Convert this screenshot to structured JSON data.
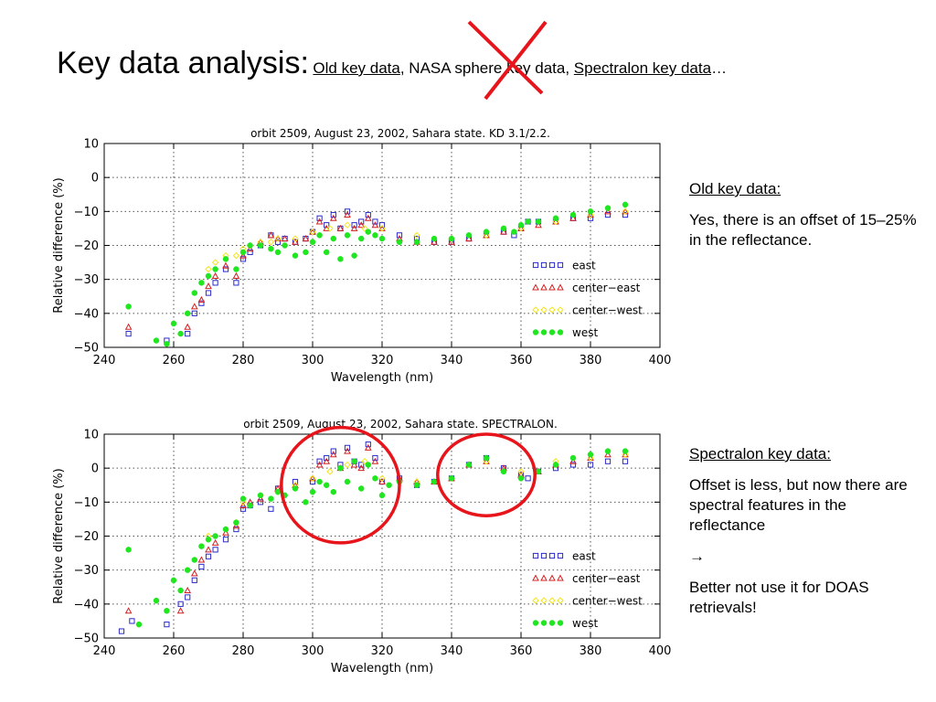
{
  "slide": {
    "title_main": "Key data analysis:",
    "title_opt_old": "Old key data",
    "title_sep1": ", ",
    "title_opt_nasa": "NASA sphere key data",
    "title_sep2": ", ",
    "title_opt_spectralon": "Spectralon key data",
    "title_ellipsis": "…",
    "cross_color": "#e8141b"
  },
  "notes": {
    "top": {
      "heading": "Old key data:",
      "body": "Yes, there is an offset of 15–25% in the reflectance."
    },
    "bottom": {
      "heading": "Spectralon key data:",
      "body": "Offset is less, but now there are spectral features in the reflectance",
      "arrow": "→",
      "conclusion": "Better not use it for DOAS retrievals!"
    }
  },
  "chart_data": [
    {
      "type": "scatter",
      "title": "orbit 2509, August 23, 2002, Sahara state. KD 3.1/2.2.",
      "xlabel": "Wavelength (nm)",
      "ylabel": "Relative difference (%)",
      "xlim": [
        240,
        400
      ],
      "ylim": [
        -50,
        10
      ],
      "xticks": [
        240,
        260,
        280,
        300,
        320,
        340,
        360,
        380,
        400
      ],
      "yticks": [
        10,
        0,
        -10,
        -20,
        -30,
        -40,
        -50
      ],
      "grid": true,
      "legend_position": "bottom-right",
      "series": [
        {
          "name": "east",
          "marker": "square",
          "color": "#2b2bc8",
          "x": [
            247,
            258,
            264,
            266,
            268,
            270,
            272,
            275,
            278,
            280,
            282,
            285,
            288,
            290,
            292,
            295,
            298,
            300,
            302,
            304,
            306,
            308,
            310,
            312,
            314,
            316,
            318,
            320,
            325,
            330,
            335,
            340,
            345,
            350,
            355,
            358,
            360,
            362,
            365,
            370,
            375,
            380,
            385,
            390
          ],
          "y": [
            -46,
            -48,
            -46,
            -40,
            -37,
            -34,
            -31,
            -27,
            -31,
            -24,
            -22,
            -20,
            -17,
            -19,
            -18,
            -19,
            -18,
            -16,
            -12,
            -14,
            -11,
            -15,
            -10,
            -14,
            -13,
            -11,
            -13,
            -14,
            -17,
            -18,
            -19,
            -19,
            -18,
            -17,
            -16,
            -17,
            -15,
            -13,
            -13,
            -13,
            -12,
            -12,
            -11,
            -11
          ]
        },
        {
          "name": "center−east",
          "marker": "triangle",
          "color": "#d42020",
          "x": [
            247,
            264,
            266,
            268,
            270,
            272,
            275,
            278,
            280,
            282,
            285,
            288,
            290,
            292,
            295,
            298,
            300,
            302,
            304,
            306,
            308,
            310,
            312,
            314,
            316,
            318,
            320,
            325,
            330,
            335,
            340,
            345,
            350,
            355,
            360,
            365,
            370,
            375,
            380,
            385,
            390
          ],
          "y": [
            -44,
            -44,
            -38,
            -36,
            -32,
            -29,
            -26,
            -29,
            -23,
            -21,
            -19,
            -17,
            -18,
            -18,
            -19,
            -18,
            -16,
            -13,
            -15,
            -12,
            -15,
            -11,
            -15,
            -14,
            -12,
            -14,
            -15,
            -18,
            -19,
            -19,
            -19,
            -18,
            -17,
            -16,
            -15,
            -14,
            -13,
            -12,
            -11,
            -10,
            -10
          ]
        },
        {
          "name": "center−west",
          "marker": "diamond",
          "color": "#f2e61a",
          "x": [
            270,
            272,
            275,
            278,
            280,
            282,
            285,
            288,
            290,
            295,
            300,
            305,
            310,
            315,
            320,
            330,
            340,
            350,
            360,
            370,
            380,
            390
          ],
          "y": [
            -27,
            -25,
            -23,
            -23,
            -21,
            -20,
            -19,
            -19,
            -18,
            -18,
            -16,
            -15,
            -14,
            -15,
            -15,
            -17,
            -18,
            -17,
            -15,
            -13,
            -11,
            -10
          ]
        },
        {
          "name": "west",
          "marker": "circle",
          "color": "#1fe61f",
          "x": [
            247,
            255,
            258,
            260,
            262,
            264,
            266,
            268,
            270,
            272,
            275,
            278,
            280,
            282,
            285,
            288,
            290,
            292,
            295,
            298,
            300,
            302,
            304,
            306,
            308,
            310,
            312,
            314,
            316,
            318,
            320,
            325,
            330,
            335,
            340,
            345,
            350,
            355,
            358,
            360,
            362,
            365,
            370,
            375,
            380,
            385,
            390
          ],
          "y": [
            -38,
            -48,
            -49,
            -43,
            -46,
            -40,
            -34,
            -31,
            -29,
            -27,
            -24,
            -27,
            -22,
            -20,
            -20,
            -21,
            -22,
            -20,
            -23,
            -22,
            -19,
            -17,
            -22,
            -18,
            -24,
            -17,
            -23,
            -18,
            -16,
            -17,
            -18,
            -19,
            -19,
            -18,
            -18,
            -17,
            -16,
            -15,
            -16,
            -14,
            -13,
            -13,
            -12,
            -11,
            -10,
            -9,
            -8
          ]
        }
      ]
    },
    {
      "type": "scatter",
      "title": "orbit 2509, August 23, 2002, Sahara state. SPECTRALON.",
      "xlabel": "Wavelength (nm)",
      "ylabel": "Relative difference (%)",
      "xlim": [
        240,
        400
      ],
      "ylim": [
        -50,
        10
      ],
      "xticks": [
        240,
        260,
        280,
        300,
        320,
        340,
        360,
        380,
        400
      ],
      "yticks": [
        10,
        0,
        -10,
        -20,
        -30,
        -40,
        -50
      ],
      "grid": true,
      "legend_position": "bottom-right",
      "annotations": [
        {
          "shape": "ellipse",
          "color": "#e8141b",
          "cx": 308,
          "cy": -5,
          "rx": 17,
          "ry": 17
        },
        {
          "shape": "ellipse",
          "color": "#e8141b",
          "cx": 350,
          "cy": -2,
          "rx": 14,
          "ry": 12
        }
      ],
      "series": [
        {
          "name": "east",
          "marker": "square",
          "color": "#2b2bc8",
          "x": [
            245,
            248,
            258,
            262,
            264,
            266,
            268,
            270,
            272,
            275,
            278,
            280,
            282,
            285,
            288,
            290,
            295,
            300,
            302,
            304,
            306,
            308,
            310,
            312,
            314,
            316,
            318,
            320,
            325,
            330,
            335,
            340,
            345,
            350,
            355,
            360,
            362,
            365,
            370,
            375,
            380,
            385,
            390
          ],
          "y": [
            -48,
            -45,
            -46,
            -40,
            -38,
            -33,
            -29,
            -26,
            -24,
            -21,
            -18,
            -12,
            -11,
            -10,
            -12,
            -6,
            -4,
            -4,
            2,
            3,
            5,
            1,
            6,
            2,
            1,
            7,
            3,
            -4,
            -3,
            -5,
            -4,
            -3,
            1,
            3,
            0,
            -2,
            -3,
            -1,
            0,
            1,
            1,
            2,
            2
          ]
        },
        {
          "name": "center−east",
          "marker": "triangle",
          "color": "#d42020",
          "x": [
            247,
            262,
            264,
            266,
            268,
            270,
            272,
            275,
            278,
            280,
            282,
            285,
            290,
            295,
            300,
            302,
            304,
            306,
            308,
            310,
            312,
            314,
            316,
            318,
            320,
            325,
            330,
            335,
            340,
            345,
            350,
            355,
            360,
            365,
            370,
            375,
            380,
            385,
            390
          ],
          "y": [
            -42,
            -42,
            -36,
            -31,
            -27,
            -24,
            -22,
            -19,
            -17,
            -11,
            -10,
            -9,
            -6,
            -5,
            -3,
            1,
            2,
            4,
            0,
            5,
            1,
            0,
            6,
            2,
            -4,
            -3,
            -4,
            -4,
            -3,
            1,
            2,
            0,
            -2,
            -1,
            1,
            2,
            3,
            4,
            4
          ]
        },
        {
          "name": "center−west",
          "marker": "diamond",
          "color": "#f2e61a",
          "x": [
            270,
            275,
            278,
            280,
            285,
            290,
            295,
            300,
            305,
            310,
            315,
            320,
            330,
            340,
            350,
            360,
            370,
            380,
            390
          ],
          "y": [
            -20,
            -18,
            -16,
            -10,
            -8,
            -7,
            -5,
            -3,
            -1,
            1,
            2,
            -3,
            -4,
            -3,
            2,
            -1,
            2,
            3,
            4
          ]
        },
        {
          "name": "west",
          "marker": "circle",
          "color": "#1fe61f",
          "x": [
            247,
            250,
            255,
            258,
            260,
            262,
            264,
            266,
            268,
            270,
            272,
            275,
            278,
            280,
            282,
            285,
            288,
            290,
            292,
            295,
            298,
            300,
            302,
            304,
            306,
            308,
            310,
            312,
            314,
            316,
            318,
            320,
            322,
            325,
            330,
            335,
            340,
            345,
            350,
            355,
            360,
            365,
            370,
            375,
            380,
            385,
            390
          ],
          "y": [
            -24,
            -46,
            -39,
            -42,
            -33,
            -36,
            -30,
            -27,
            -23,
            -21,
            -20,
            -18,
            -16,
            -9,
            -11,
            -8,
            -9,
            -7,
            -8,
            -6,
            -10,
            -7,
            -4,
            -5,
            -7,
            0,
            -4,
            2,
            -6,
            1,
            -3,
            -8,
            -5,
            -4,
            -5,
            -4,
            -3,
            1,
            3,
            -1,
            -3,
            -1,
            1,
            3,
            4,
            5,
            5
          ]
        }
      ]
    }
  ],
  "legend_items": [
    {
      "label": "east"
    },
    {
      "label": "center−east"
    },
    {
      "label": "center−west"
    },
    {
      "label": "west"
    }
  ]
}
